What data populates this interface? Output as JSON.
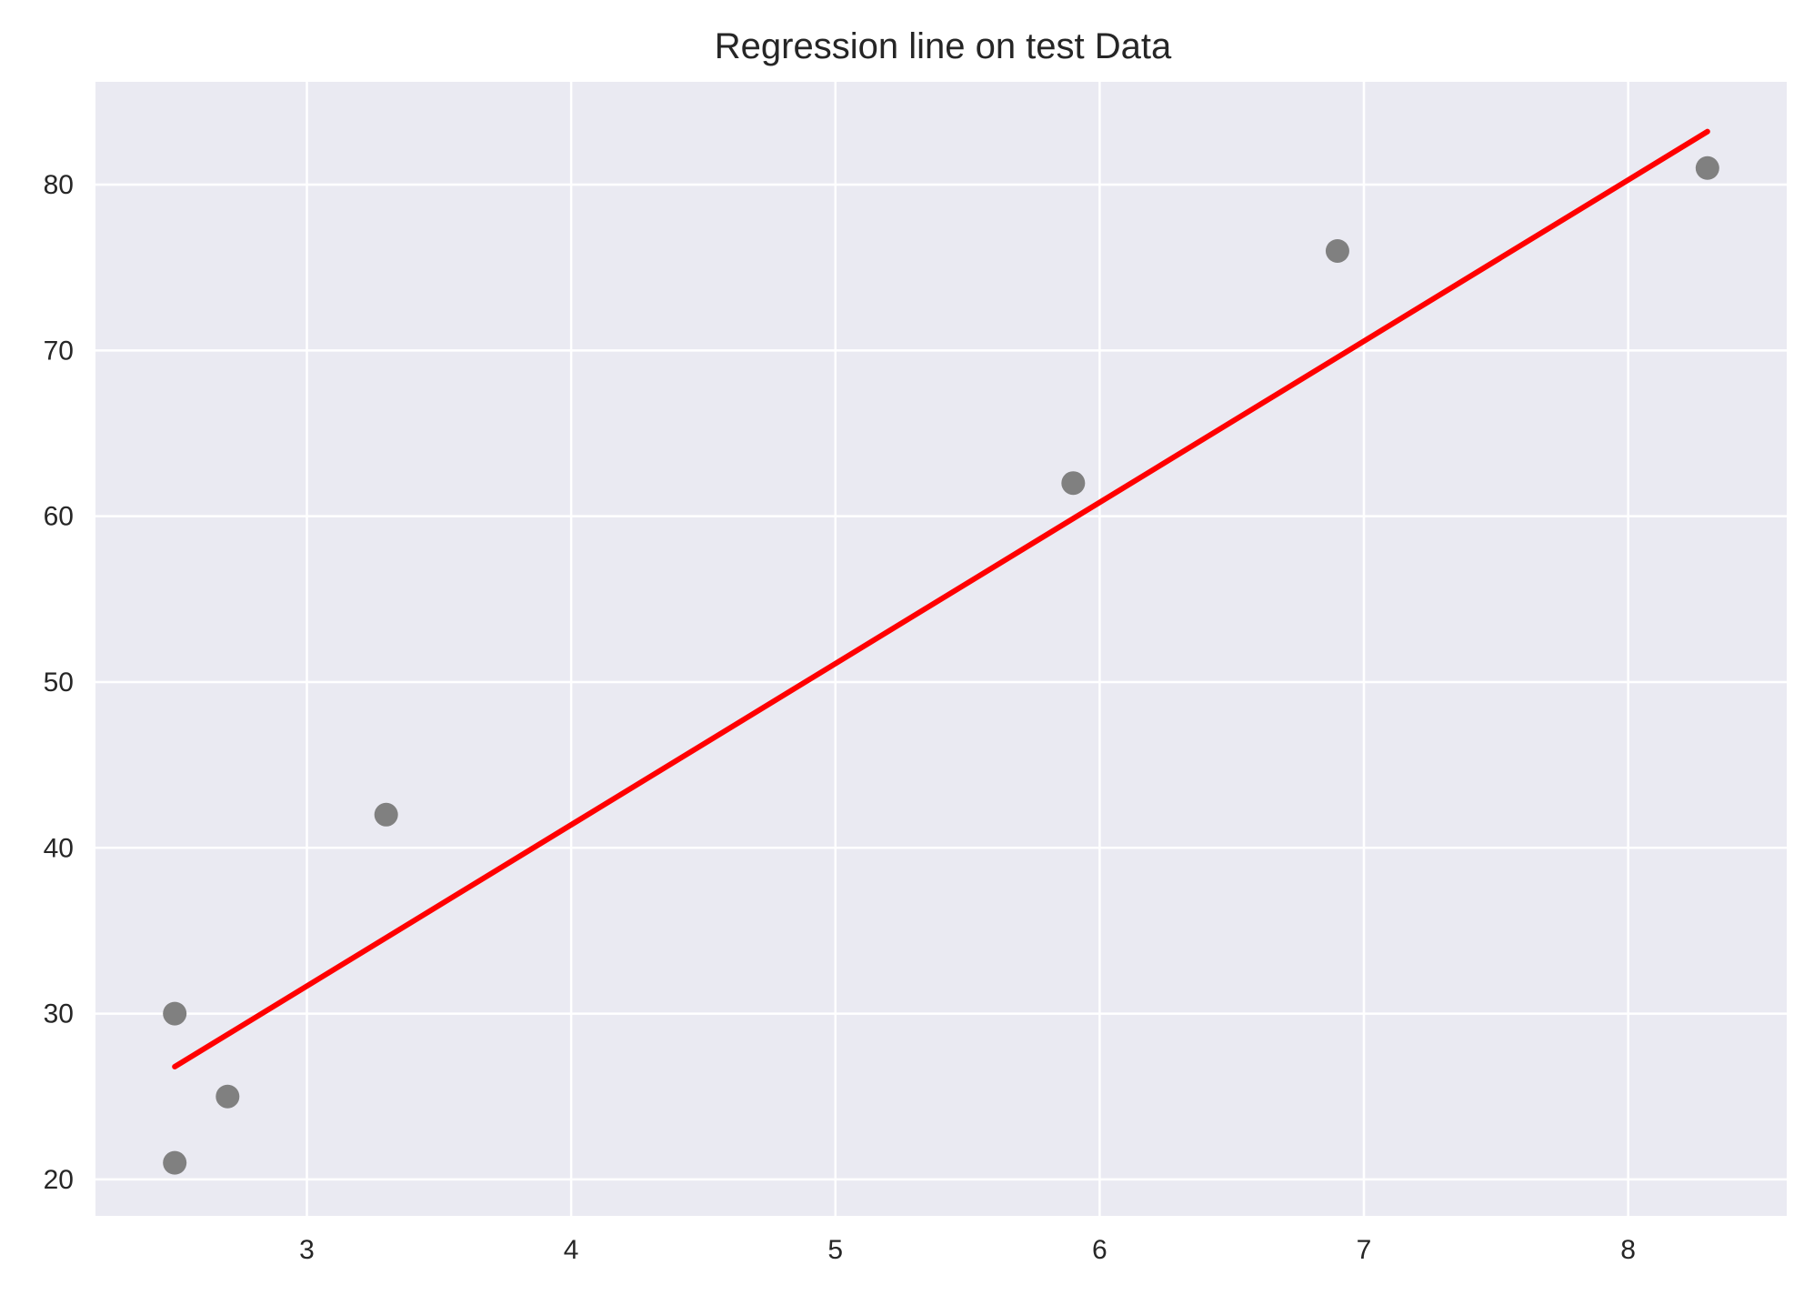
{
  "chart_data": {
    "type": "scatter",
    "title": "Regression line on test Data",
    "xlabel": "",
    "ylabel": "",
    "xlim": [
      2.2,
      8.6
    ],
    "ylim": [
      17.8,
      86.2
    ],
    "x_ticks": [
      3,
      4,
      5,
      6,
      7,
      8
    ],
    "y_ticks": [
      20,
      30,
      40,
      50,
      60,
      70,
      80
    ],
    "grid": true,
    "background_color": "#eaeaf2",
    "series": [
      {
        "type": "scatter",
        "color": "#808080",
        "x": [
          2.5,
          2.5,
          2.7,
          3.3,
          5.9,
          6.9,
          8.3
        ],
        "y": [
          30,
          21,
          25,
          42,
          62,
          76,
          81
        ]
      },
      {
        "type": "line",
        "color": "#ff0000",
        "x": [
          2.5,
          8.3
        ],
        "y": [
          26.8,
          83.2
        ]
      }
    ]
  }
}
